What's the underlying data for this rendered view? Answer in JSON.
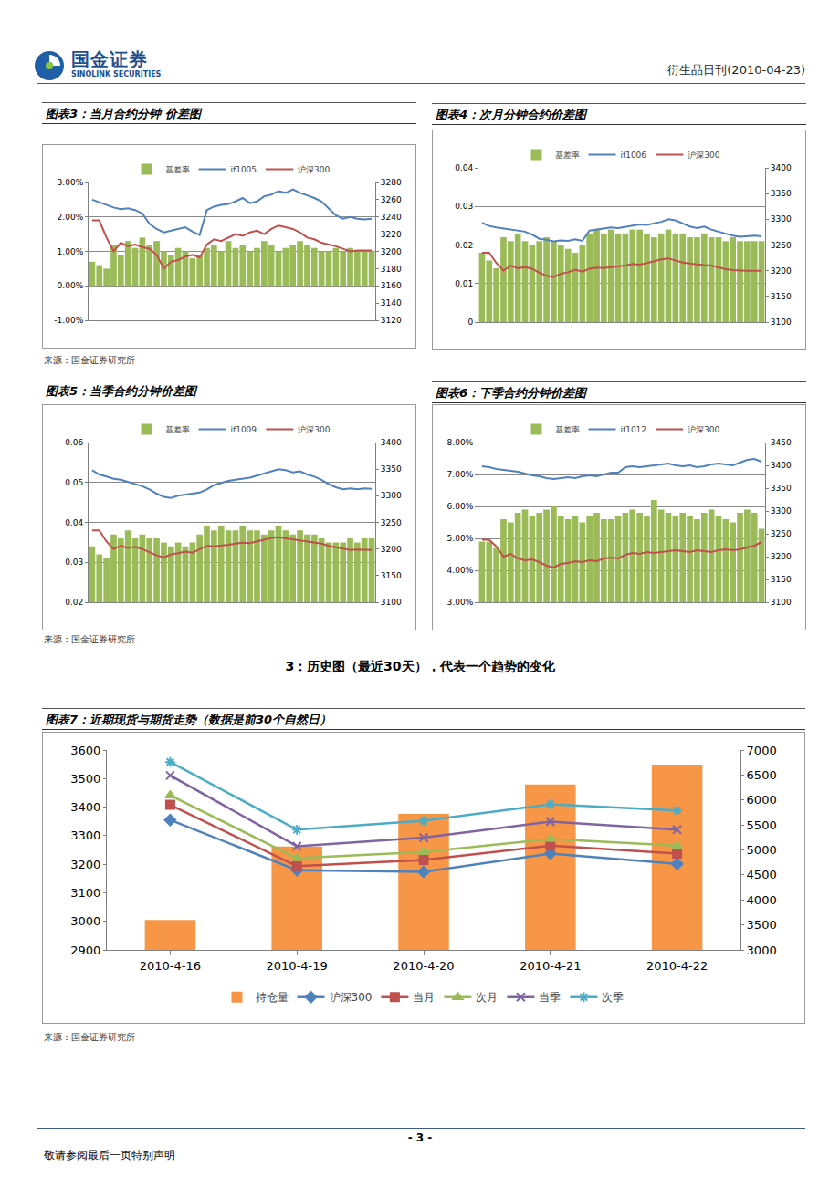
{
  "header": {
    "company": "国金证券",
    "company_en": "SINOLINK SECURITIES",
    "report": "衍生品日刊(2010-04-23)"
  },
  "section_heading": "3：历史图（最近30天），代表一个趋势的变化",
  "footer": {
    "page": "- 3 -",
    "notice": "敬请参阅最后一页特别声明"
  },
  "chart_data": [
    {
      "type": "bar_line",
      "title": "图表3：当月合约分钟 价差图",
      "source": "来源：国金证券研究所",
      "categories": [
        null,
        null,
        null,
        null,
        null,
        null,
        null,
        null,
        null,
        null,
        null,
        null,
        null,
        null,
        null,
        null,
        null,
        null,
        null,
        null,
        null,
        null,
        null,
        null,
        null,
        null,
        null,
        null,
        null,
        null,
        null,
        null,
        null,
        null,
        null,
        null,
        null,
        null,
        null,
        null
      ],
      "tick_labels": "y",
      "grid": true,
      "legend": "top",
      "ylim": [
        -1,
        3
      ],
      "yticks": [
        {
          "value": -1,
          "label": "-1.00%"
        },
        {
          "value": 0,
          "label": "0.00%"
        },
        {
          "value": 1,
          "label": "1.00%"
        },
        {
          "value": 2,
          "label": "2.00%"
        },
        {
          "value": 3,
          "label": "3.00%"
        }
      ],
      "y2lim": [
        3120,
        3280
      ],
      "y2ticks": [
        3120,
        3140,
        3160,
        3180,
        3200,
        3220,
        3240,
        3260,
        3280
      ],
      "series": [
        {
          "name": "基差率",
          "type": "bar",
          "color": "#9BBB59",
          "values": [
            0.7,
            0.6,
            0.5,
            1.2,
            0.9,
            1.3,
            1.1,
            1.4,
            1.2,
            1.3,
            1.0,
            0.9,
            1.1,
            1.0,
            0.8,
            0.9,
            1.1,
            1.2,
            1.0,
            1.3,
            1.1,
            1.2,
            1.0,
            1.1,
            1.3,
            1.2,
            1.0,
            1.1,
            1.2,
            1.3,
            1.2,
            1.1,
            1.0,
            1.0,
            1.1,
            1.0,
            1.1,
            1.0,
            1.0,
            1.0
          ]
        },
        {
          "name": "if1005",
          "type": "line",
          "axis": "y2",
          "color": "#4F81BD",
          "values": [
            3260,
            3257,
            3254,
            3251,
            3249,
            3250,
            3248,
            3244,
            3232,
            3226,
            3222,
            3224,
            3226,
            3228,
            3223,
            3219,
            3248,
            3252,
            3254,
            3255,
            3258,
            3262,
            3256,
            3258,
            3264,
            3266,
            3270,
            3268,
            3272,
            3268,
            3265,
            3262,
            3258,
            3250,
            3242,
            3238,
            3240,
            3238,
            3237,
            3238
          ]
        },
        {
          "name": "沪深300",
          "type": "line",
          "axis": "y2",
          "color": "#C0504D",
          "values": [
            3236,
            3236,
            3216,
            3200,
            3210,
            3206,
            3208,
            3205,
            3203,
            3196,
            3180,
            3188,
            3190,
            3194,
            3196,
            3193,
            3208,
            3214,
            3212,
            3216,
            3220,
            3218,
            3222,
            3224,
            3220,
            3226,
            3230,
            3228,
            3226,
            3222,
            3216,
            3214,
            3210,
            3208,
            3206,
            3203,
            3200,
            3201,
            3201,
            3201
          ]
        }
      ]
    },
    {
      "type": "bar_line",
      "title": "图表4：次月分钟合约价差图",
      "categories": [
        null,
        null,
        null,
        null,
        null,
        null,
        null,
        null,
        null,
        null,
        null,
        null,
        null,
        null,
        null,
        null,
        null,
        null,
        null,
        null,
        null,
        null,
        null,
        null,
        null,
        null,
        null,
        null,
        null,
        null,
        null,
        null,
        null,
        null,
        null,
        null,
        null,
        null,
        null,
        null
      ],
      "tick_labels": "y",
      "grid": true,
      "legend": "top",
      "ylim": [
        0,
        0.04
      ],
      "yticks": [
        0,
        0.01,
        0.02,
        0.03,
        0.04
      ],
      "y2lim": [
        3100,
        3400
      ],
      "y2ticks": [
        3100,
        3150,
        3200,
        3250,
        3300,
        3350,
        3400
      ],
      "series": [
        {
          "name": "基差率",
          "type": "bar",
          "color": "#9BBB59",
          "values": [
            0.018,
            0.016,
            0.014,
            0.022,
            0.021,
            0.023,
            0.021,
            0.02,
            0.021,
            0.022,
            0.021,
            0.02,
            0.019,
            0.018,
            0.02,
            0.023,
            0.024,
            0.023,
            0.024,
            0.023,
            0.023,
            0.024,
            0.024,
            0.023,
            0.022,
            0.023,
            0.024,
            0.023,
            0.023,
            0.022,
            0.022,
            0.023,
            0.022,
            0.022,
            0.021,
            0.022,
            0.021,
            0.021,
            0.021,
            0.021
          ]
        },
        {
          "name": "if1006",
          "type": "line",
          "axis": "y2",
          "color": "#4F81BD",
          "values": [
            3293,
            3287,
            3284,
            3282,
            3280,
            3278,
            3276,
            3270,
            3262,
            3260,
            3257,
            3259,
            3258,
            3261,
            3258,
            3278,
            3280,
            3282,
            3284,
            3283,
            3285,
            3288,
            3290,
            3289,
            3292,
            3295,
            3300,
            3298,
            3292,
            3286,
            3283,
            3286,
            3280,
            3276,
            3272,
            3268,
            3266,
            3267,
            3268,
            3267
          ]
        },
        {
          "name": "沪深300",
          "type": "line",
          "axis": "y2",
          "color": "#C0504D",
          "values": [
            3235,
            3235,
            3215,
            3200,
            3210,
            3205,
            3207,
            3204,
            3196,
            3190,
            3188,
            3194,
            3197,
            3202,
            3198,
            3204,
            3206,
            3205,
            3207,
            3208,
            3210,
            3213,
            3212,
            3215,
            3219,
            3222,
            3224,
            3220,
            3216,
            3214,
            3212,
            3211,
            3210,
            3206,
            3203,
            3201,
            3200,
            3200,
            3200,
            3200
          ]
        }
      ]
    },
    {
      "type": "bar_line",
      "title": "图表5：当季合约分钟价差图",
      "source": "来源：国金证券研究所",
      "categories": [
        null,
        null,
        null,
        null,
        null,
        null,
        null,
        null,
        null,
        null,
        null,
        null,
        null,
        null,
        null,
        null,
        null,
        null,
        null,
        null,
        null,
        null,
        null,
        null,
        null,
        null,
        null,
        null,
        null,
        null,
        null,
        null,
        null,
        null,
        null,
        null,
        null,
        null,
        null,
        null
      ],
      "tick_labels": "y",
      "grid": true,
      "legend": "top",
      "ylim": [
        0.02,
        0.06
      ],
      "yticks": [
        0.02,
        0.03,
        0.04,
        0.05,
        0.06
      ],
      "y2lim": [
        3100,
        3400
      ],
      "y2ticks": [
        3100,
        3150,
        3200,
        3250,
        3300,
        3350,
        3400
      ],
      "series": [
        {
          "name": "基差率",
          "type": "bar",
          "color": "#9BBB59",
          "values": [
            0.034,
            0.032,
            0.031,
            0.037,
            0.036,
            0.038,
            0.036,
            0.037,
            0.036,
            0.036,
            0.035,
            0.034,
            0.035,
            0.034,
            0.035,
            0.037,
            0.039,
            0.038,
            0.039,
            0.038,
            0.038,
            0.039,
            0.038,
            0.038,
            0.037,
            0.038,
            0.039,
            0.038,
            0.037,
            0.038,
            0.037,
            0.037,
            0.036,
            0.035,
            0.035,
            0.035,
            0.036,
            0.035,
            0.036,
            0.036
          ]
        },
        {
          "name": "if1009",
          "type": "line",
          "axis": "y2",
          "color": "#4F81BD",
          "values": [
            3348,
            3340,
            3336,
            3332,
            3330,
            3326,
            3322,
            3318,
            3312,
            3304,
            3298,
            3296,
            3300,
            3302,
            3304,
            3306,
            3312,
            3320,
            3324,
            3328,
            3330,
            3332,
            3334,
            3338,
            3342,
            3346,
            3350,
            3348,
            3344,
            3346,
            3340,
            3336,
            3330,
            3322,
            3316,
            3312,
            3314,
            3312,
            3314,
            3313
          ]
        },
        {
          "name": "沪深300",
          "type": "line",
          "axis": "y2",
          "color": "#C0504D",
          "values": [
            3235,
            3235,
            3214,
            3200,
            3206,
            3202,
            3204,
            3200,
            3194,
            3188,
            3184,
            3190,
            3192,
            3195,
            3193,
            3200,
            3206,
            3205,
            3206,
            3208,
            3210,
            3212,
            3211,
            3214,
            3218,
            3221,
            3222,
            3220,
            3218,
            3216,
            3214,
            3212,
            3210,
            3206,
            3203,
            3200,
            3198,
            3199,
            3198,
            3198
          ]
        }
      ]
    },
    {
      "type": "bar_line",
      "title": "图表6：下季合约分钟价差图",
      "categories": [
        null,
        null,
        null,
        null,
        null,
        null,
        null,
        null,
        null,
        null,
        null,
        null,
        null,
        null,
        null,
        null,
        null,
        null,
        null,
        null,
        null,
        null,
        null,
        null,
        null,
        null,
        null,
        null,
        null,
        null,
        null,
        null,
        null,
        null,
        null,
        null,
        null,
        null,
        null,
        null
      ],
      "tick_labels": "y",
      "grid": true,
      "legend": "top",
      "ylim": [
        3,
        8
      ],
      "yticks": [
        {
          "value": 3,
          "label": "3.00%"
        },
        {
          "value": 4,
          "label": "4.00%"
        },
        {
          "value": 5,
          "label": "5.00%"
        },
        {
          "value": 6,
          "label": "6.00%"
        },
        {
          "value": 7,
          "label": "7.00%"
        },
        {
          "value": 8,
          "label": "8.00%"
        }
      ],
      "y2lim": [
        3100,
        3450
      ],
      "y2ticks": [
        3100,
        3150,
        3200,
        3250,
        3300,
        3350,
        3400,
        3450
      ],
      "series": [
        {
          "name": "基差率",
          "type": "bar",
          "color": "#9BBB59",
          "values": [
            4.9,
            4.9,
            4.7,
            5.6,
            5.5,
            5.8,
            5.9,
            5.7,
            5.8,
            5.9,
            6.0,
            5.7,
            5.6,
            5.7,
            5.5,
            5.7,
            5.8,
            5.6,
            5.6,
            5.7,
            5.8,
            5.9,
            5.8,
            5.7,
            6.2,
            5.9,
            5.8,
            5.7,
            5.8,
            5.7,
            5.6,
            5.8,
            5.9,
            5.7,
            5.6,
            5.5,
            5.8,
            5.9,
            5.8,
            5.3
          ]
        },
        {
          "name": "if1012",
          "type": "line",
          "axis": "y2",
          "color": "#4F81BD",
          "values": [
            3398,
            3396,
            3392,
            3390,
            3388,
            3386,
            3382,
            3378,
            3376,
            3372,
            3370,
            3372,
            3374,
            3372,
            3376,
            3378,
            3376,
            3380,
            3384,
            3384,
            3396,
            3398,
            3396,
            3398,
            3400,
            3402,
            3404,
            3400,
            3398,
            3400,
            3396,
            3398,
            3402,
            3404,
            3402,
            3400,
            3406,
            3412,
            3414,
            3408
          ]
        },
        {
          "name": "沪深300",
          "type": "line",
          "axis": "y2",
          "color": "#C0504D",
          "values": [
            3237,
            3237,
            3222,
            3200,
            3206,
            3196,
            3192,
            3194,
            3188,
            3180,
            3176,
            3184,
            3186,
            3190,
            3188,
            3192,
            3190,
            3196,
            3198,
            3196,
            3204,
            3208,
            3206,
            3210,
            3208,
            3210,
            3212,
            3214,
            3212,
            3210,
            3214,
            3212,
            3210,
            3214,
            3216,
            3214,
            3216,
            3220,
            3224,
            3232
          ]
        }
      ]
    },
    {
      "type": "bar_line",
      "title": "图表7：近期现货与期货走势（数据是前30个自然日）",
      "source": "来源：国金证券研究所",
      "categories": [
        "2010-4-16",
        "2010-4-19",
        "2010-4-20",
        "2010-4-21",
        "2010-4-22"
      ],
      "grid": false,
      "legend": "bottom",
      "ylim": [
        2900,
        3600
      ],
      "yticks": [
        2900,
        3000,
        3100,
        3200,
        3300,
        3400,
        3500,
        3600
      ],
      "y2lim": [
        3000,
        7000
      ],
      "y2ticks": [
        3000,
        3500,
        4000,
        4500,
        5000,
        5500,
        6000,
        6500,
        7000
      ],
      "series": [
        {
          "name": "持仓量",
          "type": "bar",
          "axis": "y2",
          "color": "#F79646",
          "values": [
            3600,
            5070,
            5720,
            6310,
            6710
          ]
        },
        {
          "name": "沪深300",
          "type": "line",
          "color": "#4F81BD",
          "marker": "diamond",
          "values": [
            3355,
            3179,
            3173,
            3237,
            3201
          ]
        },
        {
          "name": "当月",
          "type": "line",
          "color": "#C0504D",
          "marker": "square",
          "values": [
            3408,
            3193,
            3215,
            3265,
            3237
          ]
        },
        {
          "name": "次月",
          "type": "line",
          "color": "#9BBB59",
          "marker": "triangle",
          "values": [
            3441,
            3221,
            3243,
            3288,
            3265
          ]
        },
        {
          "name": "当季",
          "type": "line",
          "color": "#8064A2",
          "marker": "x",
          "values": [
            3511,
            3263,
            3293,
            3349,
            3321
          ]
        },
        {
          "name": "次季",
          "type": "line",
          "color": "#4BACC6",
          "marker": "asterisk",
          "values": [
            3558,
            3321,
            3352,
            3410,
            3388
          ]
        }
      ]
    }
  ]
}
